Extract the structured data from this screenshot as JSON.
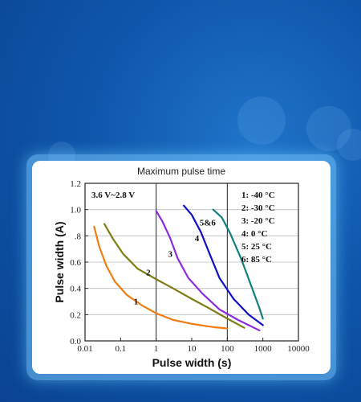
{
  "card_title": "Maximum pulse time",
  "chart_data": {
    "type": "line",
    "xlabel": "Pulse width (s)",
    "ylabel": "Pulse width (A)",
    "x_scale": "log",
    "xlim": [
      0.01,
      10000
    ],
    "ylim": [
      0.0,
      1.2
    ],
    "x_ticks": [
      "0.01",
      "0.1",
      "1",
      "10",
      "100",
      "1000",
      "10000"
    ],
    "y_ticks": [
      "0.0",
      "0.2",
      "0.4",
      "0.6",
      ".8",
      "1.0",
      "1.2"
    ],
    "annotation": "3.6 V~2.8 V",
    "legend_entries": [
      "1: -40 °C",
      "2: -30 °C",
      "3: -20 °C",
      "4: 0 °C",
      "5: 25 °C",
      "6: 85 °C"
    ],
    "series": [
      {
        "label": "1",
        "color": "#f07c12",
        "x": [
          0.018,
          0.025,
          0.04,
          0.07,
          0.15,
          0.4,
          1,
          3,
          10,
          40,
          100
        ],
        "y": [
          0.87,
          0.72,
          0.57,
          0.45,
          0.35,
          0.27,
          0.21,
          0.16,
          0.13,
          0.105,
          0.095
        ]
      },
      {
        "label": "2",
        "color": "#7d7d14",
        "x": [
          0.035,
          0.06,
          0.12,
          0.3,
          1,
          3,
          10,
          30,
          100,
          300
        ],
        "y": [
          0.89,
          0.78,
          0.66,
          0.55,
          0.47,
          0.4,
          0.32,
          0.25,
          0.17,
          0.1
        ]
      },
      {
        "label": "3",
        "color": "#8c2be2",
        "x": [
          1,
          1.5,
          2.5,
          4,
          8,
          20,
          60,
          200,
          800
        ],
        "y": [
          0.99,
          0.91,
          0.78,
          0.63,
          0.48,
          0.36,
          0.24,
          0.16,
          0.08
        ]
      },
      {
        "label": "4",
        "color": "#1010c8",
        "x": [
          6,
          10,
          18,
          30,
          60,
          150,
          400,
          1000
        ],
        "y": [
          1.03,
          0.96,
          0.83,
          0.68,
          0.48,
          0.32,
          0.2,
          0.12
        ]
      },
      {
        "label": "5&6",
        "color": "#12807d",
        "x": [
          40,
          70,
          120,
          250,
          500,
          800,
          1000
        ],
        "y": [
          1.0,
          0.94,
          0.82,
          0.62,
          0.4,
          0.25,
          0.17
        ]
      }
    ],
    "curve_labels": [
      {
        "text": "1",
        "x": 0.27,
        "y": 0.28
      },
      {
        "text": "2",
        "x": 0.6,
        "y": 0.5
      },
      {
        "text": "3",
        "x": 2.5,
        "y": 0.64
      },
      {
        "text": "4",
        "x": 14,
        "y": 0.76
      },
      {
        "text": "5&6",
        "x": 28,
        "y": 0.88
      }
    ]
  }
}
